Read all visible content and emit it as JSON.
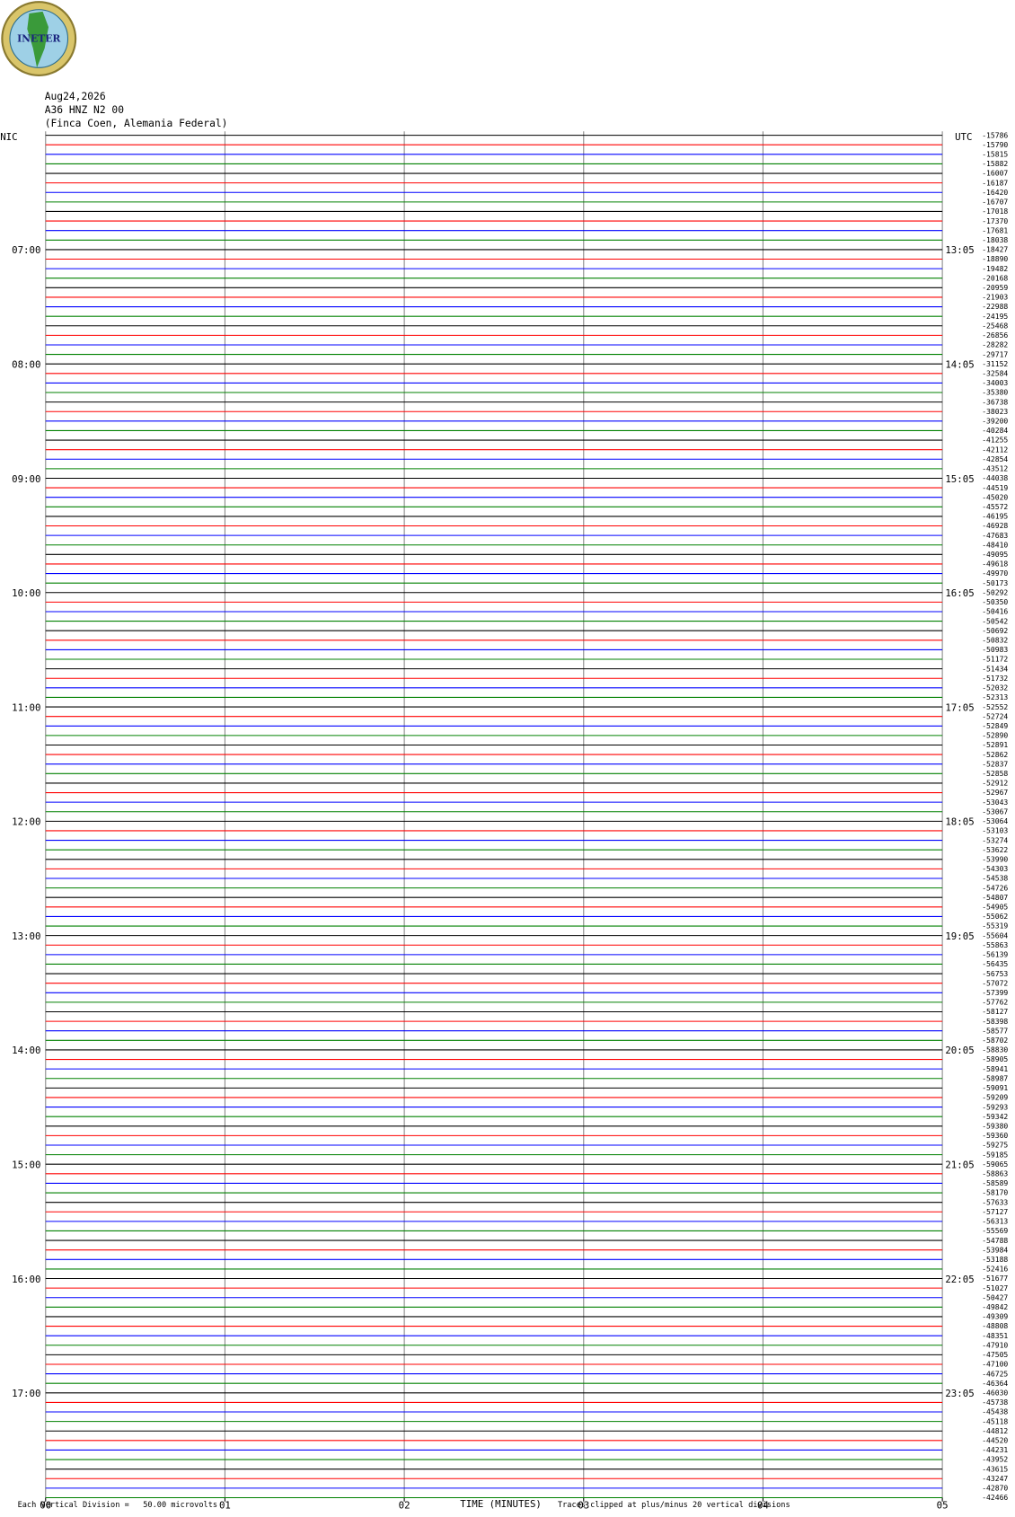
{
  "logo": "INETER",
  "header": {
    "date": "Aug24,2026",
    "station": "A36 HNZ N2 00",
    "location": "(Finca Coen, Alemania Federal)"
  },
  "left_zone": "NIC",
  "right_zone": "UTC",
  "left_hours": [
    "07:00",
    "08:00",
    "09:00",
    "10:00",
    "11:00",
    "12:00",
    "13:00",
    "14:00",
    "15:00",
    "16:00",
    "17:00"
  ],
  "right_hours": [
    "13:05",
    "14:05",
    "15:05",
    "16:05",
    "17:05",
    "18:05",
    "19:05",
    "20:05",
    "21:05",
    "22:05",
    "23:05"
  ],
  "offsets": [
    -15786,
    -15790,
    -15815,
    -15882,
    -16007,
    -16187,
    -16420,
    -16707,
    -17018,
    -17370,
    -17681,
    -18038,
    -18427,
    -18890,
    -19482,
    -20168,
    -20959,
    -21903,
    -22988,
    -24195,
    -25468,
    -26856,
    -28282,
    -29717,
    -31152,
    -32584,
    -34003,
    -35380,
    -36738,
    -38023,
    -39200,
    -40284,
    -41255,
    -42112,
    -42854,
    -43512,
    -44038,
    -44519,
    -45020,
    -45572,
    -46195,
    -46928,
    -47683,
    -48410,
    -49095,
    -49618,
    -49970,
    -50173,
    -50292,
    -50350,
    -50416,
    -50542,
    -50692,
    -50832,
    -50983,
    -51172,
    -51434,
    -51732,
    -52032,
    -52313,
    -52552,
    -52724,
    -52849,
    -52890,
    -52891,
    -52862,
    -52837,
    -52858,
    -52912,
    -52967,
    -53043,
    -53067,
    -53064,
    -53103,
    -53274,
    -53622,
    -53990,
    -54303,
    -54538,
    -54726,
    -54807,
    -54905,
    -55062,
    -55319,
    -55604,
    -55863,
    -56139,
    -56435,
    -56753,
    -57072,
    -57399,
    -57762,
    -58127,
    -58398,
    -58577,
    -58702,
    -58830,
    -58905,
    -58941,
    -58987,
    -59091,
    -59209,
    -59293,
    -59342,
    -59380,
    -59360,
    -59275,
    -59185,
    -59065,
    -58863,
    -58589,
    -58170,
    -57633,
    -57127,
    -56313,
    -55569,
    -54788,
    -53984,
    -53188,
    -52416,
    -51677,
    -51027,
    -50427,
    -49842,
    -49309,
    -48808,
    -48351,
    -47910,
    -47505,
    -47100,
    -46725,
    -46364,
    -46030,
    -45738,
    -45438,
    -45118,
    -44812,
    -44520,
    -44231,
    -43952,
    -43615,
    -43247,
    -42870,
    -42466
  ],
  "trace_colors": [
    "#000000",
    "#ff0000",
    "#0000ff",
    "#008000"
  ],
  "xticks": [
    "00",
    "01",
    "02",
    "03",
    "04",
    "05"
  ],
  "xlabel": "TIME (MINUTES)",
  "footer": {
    "scale": "Each Vertical Division =   50.00 microvolts",
    "clip": "Traces clipped at plus/minus 20 vertical divisions"
  }
}
